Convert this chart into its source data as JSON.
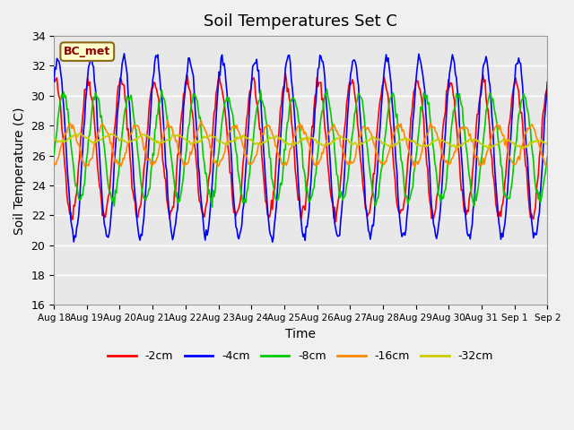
{
  "title": "Soil Temperatures Set C",
  "xlabel": "Time",
  "ylabel": "Soil Temperature (C)",
  "ylim": [
    16,
    34
  ],
  "xlim_days": 15,
  "annotation": "BC_met",
  "legend_labels": [
    "-2cm",
    "-4cm",
    "-8cm",
    "-16cm",
    "-32cm"
  ],
  "line_colors": [
    "#ff0000",
    "#0000ff",
    "#00cc00",
    "#ff8800",
    "#cccc00"
  ],
  "fig_bg_color": "#f0f0f0",
  "plot_bg_color": "#e8e8e8",
  "yticks": [
    16,
    18,
    20,
    22,
    24,
    26,
    28,
    30,
    32,
    34
  ],
  "xtick_labels": [
    "Aug 18",
    "Aug 19",
    "Aug 20",
    "Aug 21",
    "Aug 22",
    "Aug 23",
    "Aug 24",
    "Aug 25",
    "Aug 26",
    "Aug 27",
    "Aug 28",
    "Aug 29",
    "Aug 30",
    "Aug 31",
    "Sep 1",
    "Sep 2"
  ],
  "num_points": 500
}
